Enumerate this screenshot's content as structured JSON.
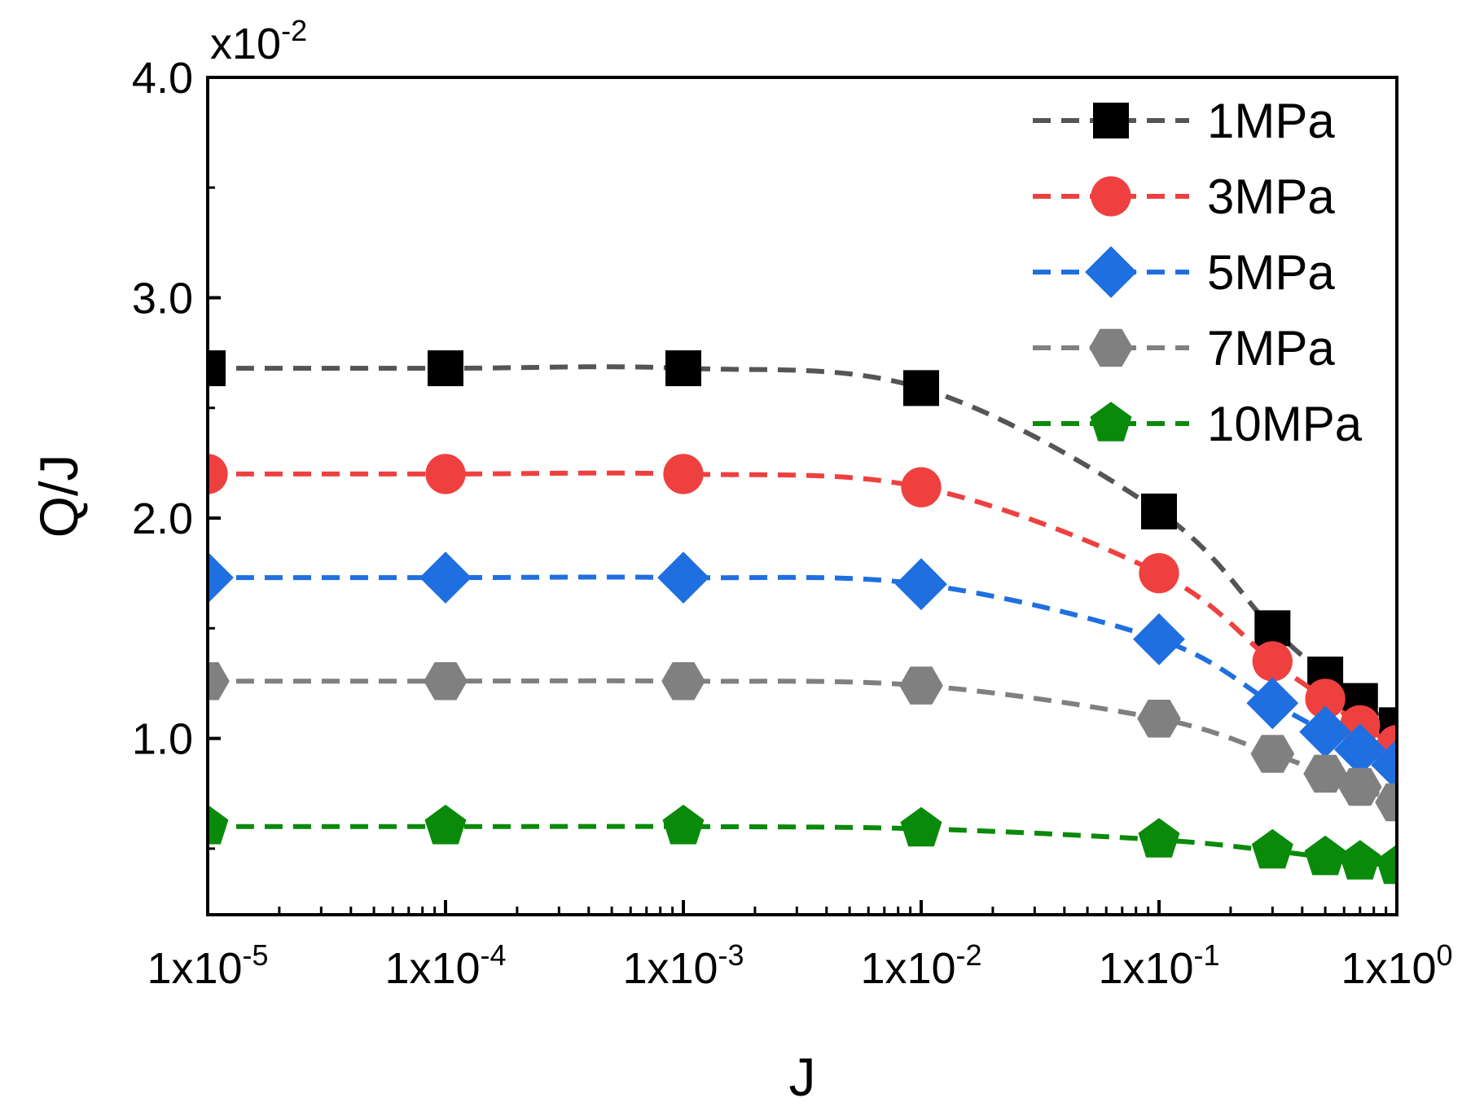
{
  "chart_data": {
    "type": "line",
    "title": "",
    "xlabel": "J",
    "ylabel": "Q/J",
    "xscale": "log",
    "xlim": [
      1e-05,
      1
    ],
    "ylim": [
      0.002,
      0.04
    ],
    "y_multiplier_label": {
      "base": "x10",
      "exp": "-2"
    },
    "x_ticks": [
      {
        "value": 1e-05,
        "base": "1x10",
        "exp": "-5"
      },
      {
        "value": 0.0001,
        "base": "1x10",
        "exp": "-4"
      },
      {
        "value": 0.001,
        "base": "1x10",
        "exp": "-3"
      },
      {
        "value": 0.01,
        "base": "1x10",
        "exp": "-2"
      },
      {
        "value": 0.1,
        "base": "1x10",
        "exp": "-1"
      },
      {
        "value": 1,
        "base": "1x10",
        "exp": "0"
      }
    ],
    "y_ticks": [
      {
        "value": 0.01,
        "label": "1.0"
      },
      {
        "value": 0.02,
        "label": "2.0"
      },
      {
        "value": 0.03,
        "label": "3.0"
      },
      {
        "value": 0.04,
        "label": "4.0"
      }
    ],
    "legend_position": "top-right",
    "x": [
      1e-05,
      0.0001,
      0.001,
      0.01,
      0.1,
      0.3,
      0.5,
      0.7,
      1.0
    ],
    "series": [
      {
        "name": "1MPa",
        "marker": "square",
        "line_color": "#555555",
        "marker_color": "#000000",
        "values": [
          0.0268,
          0.0268,
          0.0268,
          0.0259,
          0.0203,
          0.015,
          0.0129,
          0.0117,
          0.0106
        ]
      },
      {
        "name": "3MPa",
        "marker": "circle",
        "line_color": "#ef4040",
        "marker_color": "#ef4040",
        "values": [
          0.022,
          0.022,
          0.022,
          0.0214,
          0.0175,
          0.0135,
          0.0118,
          0.0106,
          0.0097
        ]
      },
      {
        "name": "5MPa",
        "marker": "diamond",
        "line_color": "#1f6fe0",
        "marker_color": "#1f6fe0",
        "values": [
          0.0173,
          0.0173,
          0.0173,
          0.017,
          0.0145,
          0.0116,
          0.0103,
          0.0095,
          0.0088
        ]
      },
      {
        "name": "7MPa",
        "marker": "hexagon",
        "line_color": "#808080",
        "marker_color": "#808080",
        "values": [
          0.0126,
          0.0126,
          0.0126,
          0.0124,
          0.0109,
          0.0093,
          0.0084,
          0.0078,
          0.0071
        ]
      },
      {
        "name": "10MPa",
        "marker": "pentagon",
        "line_color": "#0a8a0a",
        "marker_color": "#0a8a0a",
        "values": [
          0.006,
          0.006,
          0.006,
          0.0059,
          0.0054,
          0.0049,
          0.0046,
          0.0044,
          0.0042
        ]
      }
    ]
  }
}
